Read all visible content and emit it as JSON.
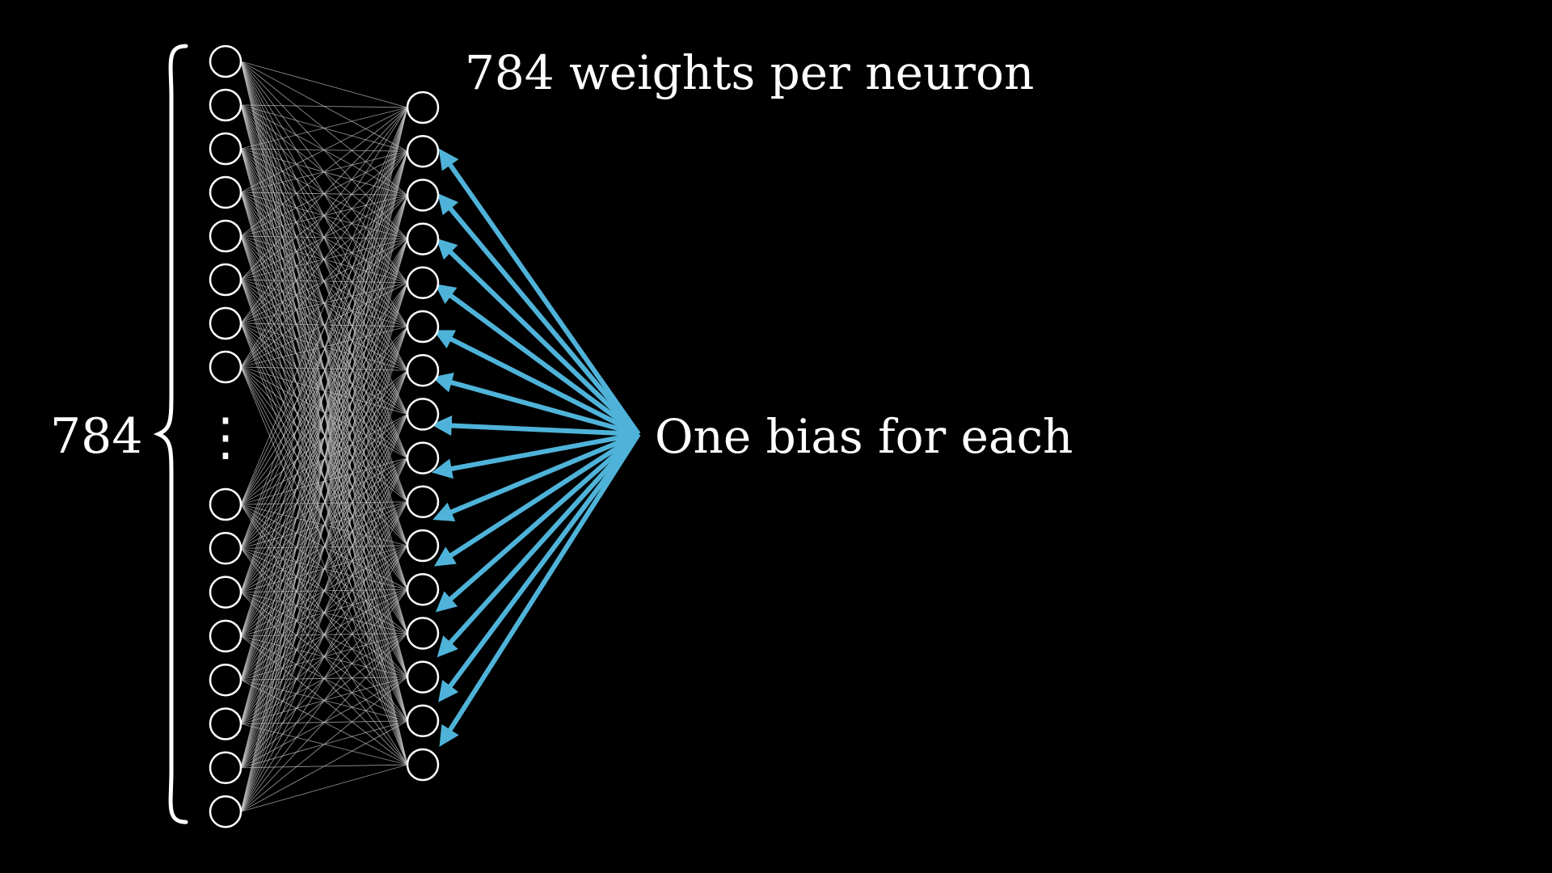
{
  "diagram": {
    "input_layer_count_label": "784",
    "weights_label": "784 weights per neuron",
    "bias_label": "One bias for each",
    "input_layer_visible_neurons": 16,
    "input_layer_ellipsis": "⋮",
    "second_layer_neurons": 16,
    "colors": {
      "background": "#000000",
      "neuron_stroke": "#ffffff",
      "weight_edges": "#c8c8c8",
      "bias_arrows": "#4fb3d9",
      "text": "#ffffff"
    }
  }
}
